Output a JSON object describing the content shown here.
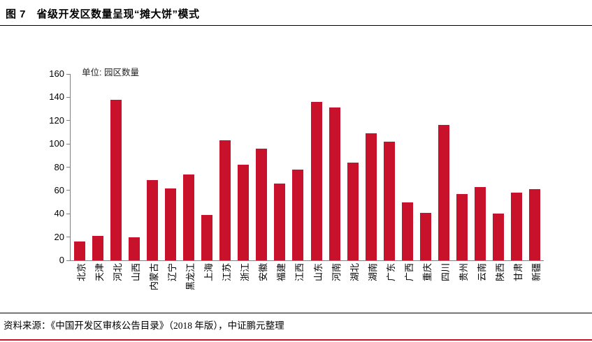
{
  "figure": {
    "title": "图 7　省级开发区数量呈现“摊大饼”模式"
  },
  "chart_data": {
    "type": "bar",
    "title": "省级开发区数量呈现“摊大饼”模式",
    "unit_label": "单位: 园区数量",
    "categories": [
      "北京",
      "天津",
      "河北",
      "山西",
      "内蒙古",
      "辽宁",
      "黑龙江",
      "上海",
      "江苏",
      "浙江",
      "安徽",
      "福建",
      "江西",
      "山东",
      "河南",
      "湖北",
      "湖南",
      "广东",
      "广西",
      "重庆",
      "四川",
      "贵州",
      "云南",
      "陕西",
      "甘肃",
      "新疆"
    ],
    "values": [
      16,
      21,
      138,
      20,
      69,
      62,
      74,
      39,
      103,
      82,
      96,
      66,
      78,
      136,
      131,
      84,
      109,
      102,
      50,
      41,
      116,
      57,
      63,
      40,
      58,
      61
    ],
    "xlabel": "",
    "ylabel": "",
    "ylim": [
      0,
      160
    ],
    "ytick_step": 20,
    "grid": false,
    "legend_position": "none",
    "bar_color": "#C8122B"
  },
  "footer": {
    "source": "资料来源：《中国开发区审核公告目录》（2018 年版），中证鹏元整理"
  },
  "colors": {
    "accent_red": "#C8122B",
    "axis_gray": "#7f7f7f",
    "text_black": "#000000"
  }
}
